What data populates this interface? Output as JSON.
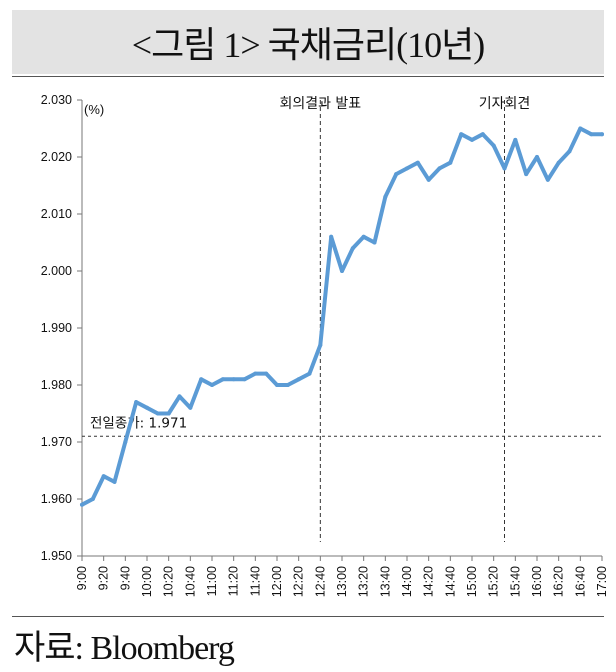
{
  "title": "<그림 1> 국채금리(10년)",
  "source": "자료: Bloomberg",
  "chart_data": {
    "type": "line",
    "title": "<그림 1> 국채금리(10년)",
    "ylabel": "(%)",
    "xlabel": "",
    "ylim": [
      1.95,
      2.03
    ],
    "yticks": [
      "2.030",
      "2.020",
      "2.010",
      "2.000",
      "1.990",
      "1.980",
      "1.970",
      "1.960",
      "1.950"
    ],
    "x_ticks": [
      "9:00",
      "9:20",
      "9:40",
      "10:00",
      "10:20",
      "10:40",
      "11:00",
      "11:20",
      "11:40",
      "12:00",
      "12:20",
      "12:40",
      "13:00",
      "13:20",
      "13:40",
      "14:00",
      "14:20",
      "14:40",
      "15:00",
      "15:20",
      "15:40",
      "16:00",
      "16:20",
      "16:40",
      "17:00"
    ],
    "grid": false,
    "series": [
      {
        "color": "#5b9bd5",
        "x": [
          "9:00",
          "9:10",
          "9:20",
          "9:30",
          "9:40",
          "9:50",
          "10:00",
          "10:10",
          "10:20",
          "10:30",
          "10:40",
          "10:50",
          "11:00",
          "11:10",
          "11:20",
          "11:30",
          "11:40",
          "11:50",
          "12:00",
          "12:10",
          "12:20",
          "12:30",
          "12:40",
          "12:50",
          "13:00",
          "13:10",
          "13:20",
          "13:30",
          "13:40",
          "13:50",
          "14:00",
          "14:10",
          "14:20",
          "14:30",
          "14:40",
          "14:50",
          "15:00",
          "15:10",
          "15:20",
          "15:30",
          "15:40",
          "15:50",
          "16:00",
          "16:10",
          "16:20",
          "16:30",
          "16:40",
          "16:50",
          "17:00"
        ],
        "values": [
          1.959,
          1.96,
          1.964,
          1.963,
          1.97,
          1.977,
          1.976,
          1.975,
          1.975,
          1.978,
          1.976,
          1.981,
          1.98,
          1.981,
          1.981,
          1.981,
          1.982,
          1.982,
          1.98,
          1.98,
          1.981,
          1.982,
          1.987,
          2.006,
          2.0,
          2.004,
          2.006,
          2.005,
          2.013,
          2.017,
          2.018,
          2.019,
          2.016,
          2.018,
          2.019,
          2.024,
          2.023,
          2.024,
          2.022,
          2.018,
          2.023,
          2.017,
          2.02,
          2.016,
          2.019,
          2.021,
          2.025,
          2.024,
          2.024
        ]
      }
    ],
    "annotations": [
      {
        "type": "vline",
        "x": "12:40",
        "text": "회의결과 발표"
      },
      {
        "type": "vline",
        "x": "15:30",
        "text": "기자회견"
      },
      {
        "type": "hline",
        "y": 1.971,
        "text": "전일종가: 1.971"
      }
    ]
  }
}
